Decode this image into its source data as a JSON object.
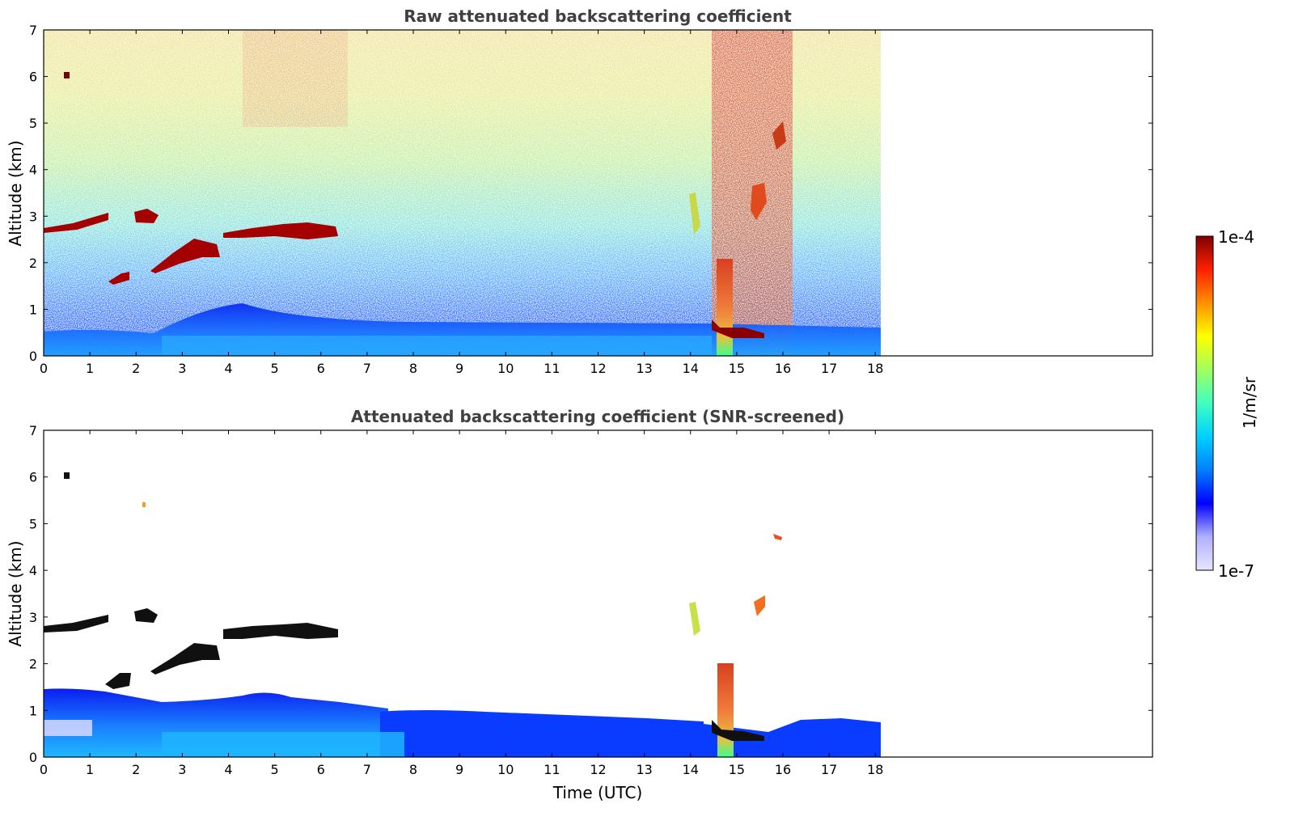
{
  "chart_data": [
    {
      "type": "heatmap",
      "title": "Raw attenuated backscattering coefficient",
      "xlabel": "",
      "ylabel": "Altitude (km)",
      "xlim": [
        0,
        24
      ],
      "ylim": [
        0,
        7
      ],
      "data_xlim": [
        0,
        18.1
      ],
      "xticks": [
        "0",
        "1",
        "2",
        "3",
        "4",
        "5",
        "6",
        "7",
        "8",
        "9",
        "10",
        "11",
        "12",
        "13",
        "14",
        "15",
        "16",
        "17",
        "18"
      ],
      "yticks": [
        "0",
        "1",
        "2",
        "3",
        "4",
        "5",
        "6",
        "7"
      ],
      "grid": false,
      "features": [
        {
          "kind": "boundary_layer",
          "x": [
            0,
            18.1
          ],
          "y": [
            0,
            0.6
          ],
          "level": "low-mid"
        },
        {
          "kind": "cloud_layer",
          "x": [
            0,
            1.4
          ],
          "y": [
            2.6,
            3.0
          ],
          "level": "high"
        },
        {
          "kind": "cloud_layer",
          "x": [
            2.3,
            4.0
          ],
          "y": [
            1.8,
            2.8
          ],
          "level": "high"
        },
        {
          "kind": "cloud_layer",
          "x": [
            3.9,
            6.4
          ],
          "y": [
            2.5,
            2.9
          ],
          "level": "high"
        },
        {
          "kind": "cloud_patch",
          "x": [
            2.0,
            2.4
          ],
          "y": [
            2.8,
            3.3
          ],
          "level": "high"
        },
        {
          "kind": "cloud_patch",
          "x": [
            1.4,
            1.9
          ],
          "y": [
            1.5,
            1.9
          ],
          "level": "high"
        },
        {
          "kind": "plume",
          "x": [
            14.5,
            15.4
          ],
          "y": [
            0,
            7
          ],
          "level": "high"
        },
        {
          "kind": "streak",
          "x": [
            14.0,
            14.2
          ],
          "y": [
            2.6,
            3.3
          ],
          "level": "mid-high"
        },
        {
          "kind": "streak",
          "x": [
            15.4,
            15.8
          ],
          "y": [
            2.9,
            3.6
          ],
          "level": "high"
        }
      ]
    },
    {
      "type": "heatmap",
      "title": "Attenuated backscattering coefficient (SNR-screened)",
      "xlabel": "Time (UTC)",
      "ylabel": "Altitude (km)",
      "xlim": [
        0,
        24
      ],
      "ylim": [
        0,
        7
      ],
      "data_xlim": [
        0,
        18.1
      ],
      "xticks": [
        "0",
        "1",
        "2",
        "3",
        "4",
        "5",
        "6",
        "7",
        "8",
        "9",
        "10",
        "11",
        "12",
        "13",
        "14",
        "15",
        "16",
        "17",
        "18"
      ],
      "yticks": [
        "0",
        "1",
        "2",
        "3",
        "4",
        "5",
        "6",
        "7"
      ],
      "grid": false,
      "features": [
        {
          "kind": "boundary_layer",
          "x": [
            0,
            7.5
          ],
          "y": [
            0,
            1.3
          ],
          "level": "low-mid"
        },
        {
          "kind": "boundary_layer",
          "x": [
            7.5,
            18.1
          ],
          "y": [
            0,
            0.9
          ],
          "level": "low"
        },
        {
          "kind": "cloud_layer",
          "x": [
            0,
            1.4
          ],
          "y": [
            2.6,
            3.0
          ],
          "level": "saturated"
        },
        {
          "kind": "cloud_layer",
          "x": [
            2.3,
            4.0
          ],
          "y": [
            1.8,
            2.8
          ],
          "level": "saturated"
        },
        {
          "kind": "cloud_layer",
          "x": [
            3.9,
            6.4
          ],
          "y": [
            2.5,
            2.9
          ],
          "level": "saturated"
        },
        {
          "kind": "cloud_patch",
          "x": [
            1.4,
            1.9
          ],
          "y": [
            1.5,
            1.9
          ],
          "level": "saturated"
        },
        {
          "kind": "cloud_patch",
          "x": [
            0.4,
            0.55
          ],
          "y": [
            5.95,
            6.1
          ],
          "level": "saturated"
        },
        {
          "kind": "streak",
          "x": [
            14.0,
            14.2
          ],
          "y": [
            2.6,
            3.2
          ],
          "level": "mid-high"
        },
        {
          "kind": "streak",
          "x": [
            15.45,
            15.65
          ],
          "y": [
            3.0,
            3.4
          ],
          "level": "high"
        },
        {
          "kind": "streak",
          "x": [
            15.75,
            15.95
          ],
          "y": [
            4.6,
            4.8
          ],
          "level": "high"
        },
        {
          "kind": "plume",
          "x": [
            14.6,
            15.0
          ],
          "y": [
            0,
            2.0
          ],
          "level": "mid-high"
        }
      ]
    }
  ],
  "colorbar": {
    "label": "1/m/sr",
    "max_label": "1e-4",
    "min_label": "1e-7",
    "scale": "log",
    "range": [
      1e-07,
      0.0001
    ],
    "colormap": [
      "#e6e6ff",
      "#b0b0ff",
      "#0000ff",
      "#0080ff",
      "#00d0ff",
      "#40ffc0",
      "#a0ff60",
      "#ffff00",
      "#ff9000",
      "#ff2000",
      "#800000"
    ]
  }
}
